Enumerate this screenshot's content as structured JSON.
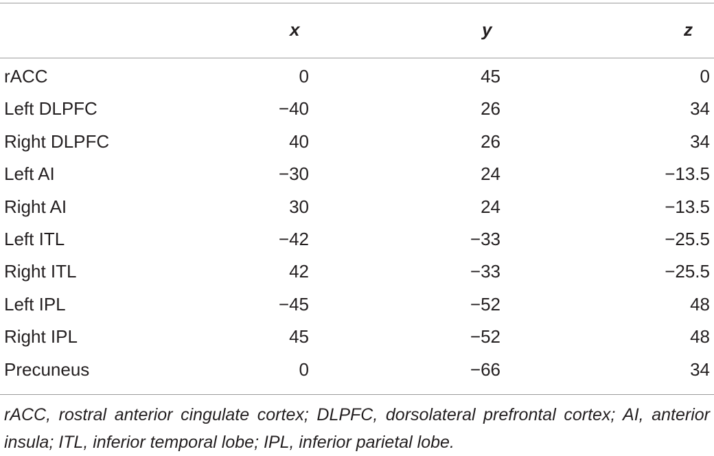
{
  "table": {
    "headers": {
      "label": "",
      "x": "x",
      "y": "y",
      "z": "z"
    },
    "rows": [
      {
        "region": "rACC",
        "x": "0",
        "y": "45",
        "z": "0"
      },
      {
        "region": "Left DLPFC",
        "x": "−40",
        "y": "26",
        "z": "34"
      },
      {
        "region": "Right DLPFC",
        "x": "40",
        "y": "26",
        "z": "34"
      },
      {
        "region": "Left AI",
        "x": "−30",
        "y": "24",
        "z": "−13.5"
      },
      {
        "region": "Right AI",
        "x": "30",
        "y": "24",
        "z": "−13.5"
      },
      {
        "region": "Left ITL",
        "x": "−42",
        "y": "−33",
        "z": "−25.5"
      },
      {
        "region": "Right ITL",
        "x": "42",
        "y": "−33",
        "z": "−25.5"
      },
      {
        "region": "Left IPL",
        "x": "−45",
        "y": "−52",
        "z": "48"
      },
      {
        "region": "Right IPL",
        "x": "45",
        "y": "−52",
        "z": "48"
      },
      {
        "region": "Precuneus",
        "x": "0",
        "y": "−66",
        "z": "34"
      }
    ],
    "footnote": "rACC, rostral anterior cingulate cortex; DLPFC, dorsolateral prefrontal cortex; AI, anterior insula; ITL, inferior temporal lobe; IPL, inferior parietal lobe."
  }
}
